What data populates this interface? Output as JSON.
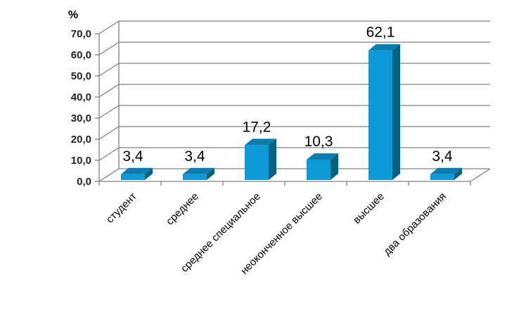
{
  "chart_data": {
    "type": "bar",
    "style": "3d-column",
    "title": "",
    "unit_label": "%",
    "categories": [
      "студент",
      "среднее",
      "среднее специальное",
      "неоконченное высшее",
      "высшее",
      "два образования"
    ],
    "values": [
      3.4,
      3.4,
      17.2,
      10.3,
      62.1,
      3.4
    ],
    "data_labels": [
      "3,4",
      "3,4",
      "17,2",
      "10,3",
      "62,1",
      "3,4"
    ],
    "y_ticks": [
      "0,0",
      "10,0",
      "20,0",
      "30,0",
      "40,0",
      "50,0",
      "60,0",
      "70,0"
    ],
    "ylim": [
      0,
      70
    ],
    "grid": true,
    "legend": "none",
    "colors": {
      "bar_front": "#0a9bd6",
      "bar_side": "#06627f",
      "bar_top": "#0b7cab",
      "grid": "#808080"
    }
  }
}
